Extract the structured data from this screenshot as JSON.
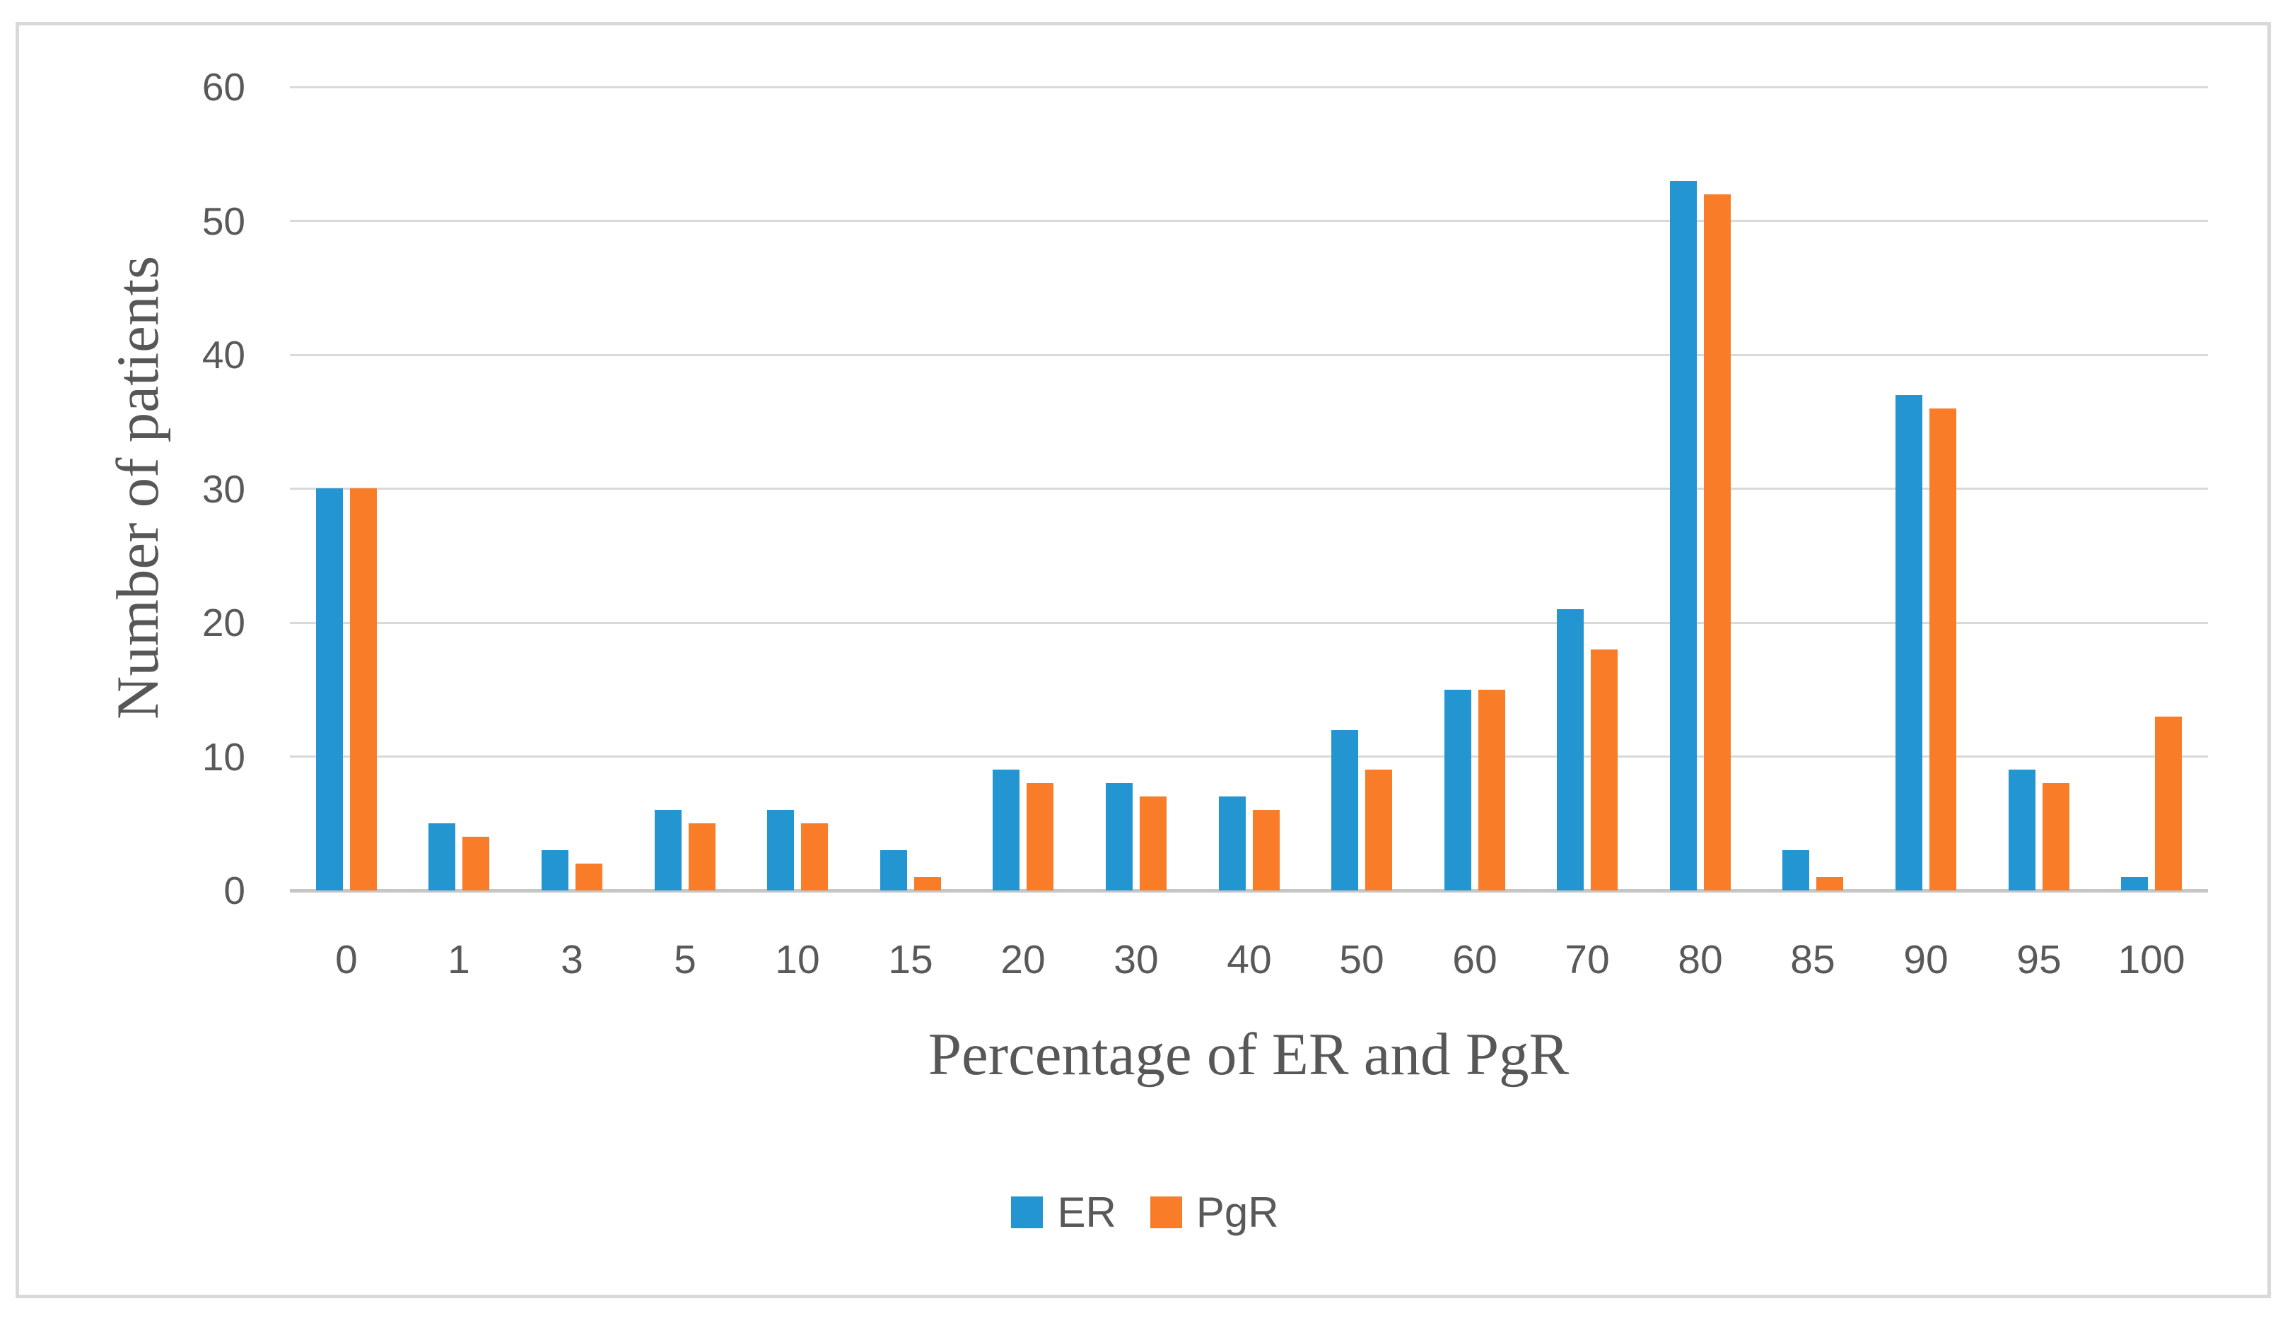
{
  "figure": {
    "colors": {
      "er": "#2396D2",
      "pgr": "#F97D28",
      "gridline": "#D9D9D9",
      "axis_line": "#C6C6C6",
      "text": "#595959",
      "frame_border": "#D9D9D9"
    }
  },
  "chart_data": {
    "type": "bar",
    "title": "",
    "xlabel": "Percentage of ER and PgR",
    "ylabel": "Number of patients",
    "categories": [
      "0",
      "1",
      "3",
      "5",
      "10",
      "15",
      "20",
      "30",
      "40",
      "50",
      "60",
      "70",
      "80",
      "85",
      "90",
      "95",
      "100"
    ],
    "series": [
      {
        "name": "ER",
        "color": "#2396D2",
        "values": [
          30,
          5,
          3,
          6,
          6,
          3,
          9,
          8,
          7,
          12,
          15,
          21,
          53,
          3,
          37,
          9,
          1
        ]
      },
      {
        "name": "PgR",
        "color": "#F97D28",
        "values": [
          30,
          4,
          2,
          5,
          5,
          1,
          8,
          7,
          6,
          9,
          15,
          18,
          52,
          1,
          36,
          8,
          13
        ]
      }
    ],
    "ylim": [
      0,
      60
    ],
    "y_ticks": [
      0,
      10,
      20,
      30,
      40,
      50,
      60
    ],
    "grid": true,
    "legend_position": "bottom"
  }
}
